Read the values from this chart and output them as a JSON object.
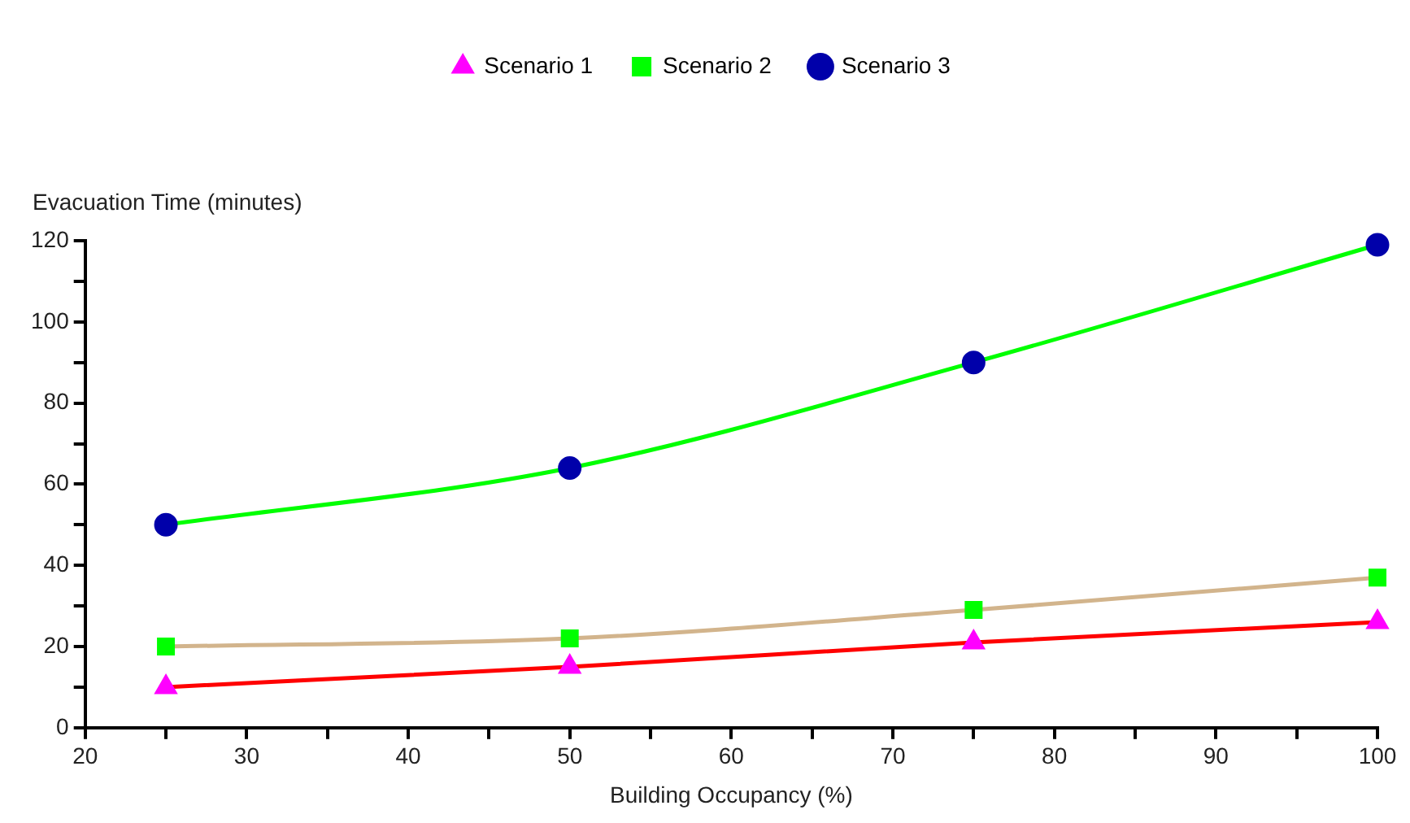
{
  "chart_data": {
    "type": "line",
    "xlabel": "Building Occupancy (%)",
    "ylabel": "Evacuation Time (minutes)",
    "x": [
      25,
      50,
      75,
      100
    ],
    "series": [
      {
        "name": "Scenario 1",
        "color": "#ff0000",
        "colors": [
          "#ff00ff",
          "#ff00ff",
          "#ff00ff",
          "#ff00ff"
        ],
        "marker": "triangle",
        "values": [
          10,
          15,
          21,
          26
        ]
      },
      {
        "name": "Scenario 2",
        "color": "#d2b48c",
        "colors": [
          "#00ff00",
          "#00ff00",
          "#00ff00",
          "#00ff00"
        ],
        "marker": "square",
        "values": [
          20,
          22,
          29,
          37
        ]
      },
      {
        "name": "Scenario 3",
        "color": "#00ff00",
        "colors": [
          "#0000aa",
          "#0000aa",
          "#0000aa",
          "#0000aa"
        ],
        "marker": "circle",
        "values": [
          50,
          64,
          90,
          119
        ]
      }
    ],
    "xlim": [
      20,
      100
    ],
    "xticks": [
      20,
      {
        "value": 25,
        "label": null
      },
      30,
      {
        "value": 35,
        "label": null
      },
      40,
      {
        "value": 45,
        "label": null
      },
      50,
      {
        "value": 55,
        "label": null
      },
      60,
      {
        "value": 65,
        "label": null
      },
      70,
      {
        "value": 75,
        "label": null
      },
      80,
      {
        "value": 85,
        "label": null
      },
      90,
      {
        "value": 95,
        "label": null
      },
      100
    ],
    "ylim": [
      0,
      120
    ],
    "yticks": [
      0,
      {
        "value": 10,
        "label": null
      },
      20,
      {
        "value": 30,
        "label": null
      },
      40,
      {
        "value": 50,
        "label": null
      },
      60,
      {
        "value": 70,
        "label": null
      },
      80,
      {
        "value": 90,
        "label": null
      },
      100,
      {
        "value": 110,
        "label": null
      },
      120
    ],
    "grid": false,
    "legend": "top",
    "line_style": "solid"
  }
}
